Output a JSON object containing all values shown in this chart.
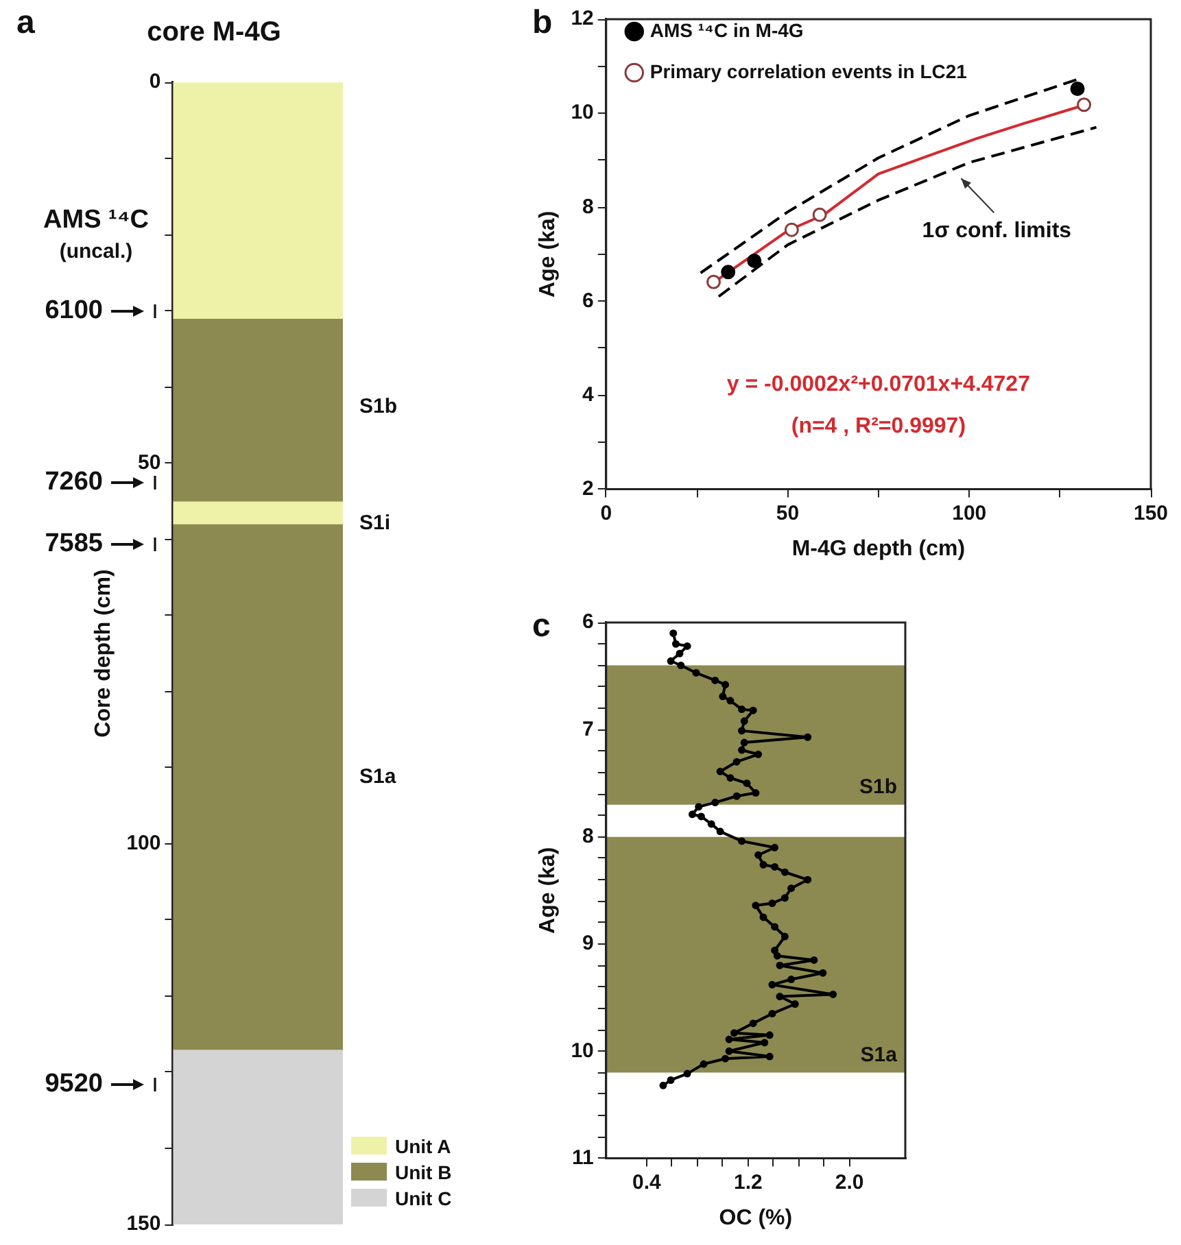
{
  "chart_data": [
    {
      "type": "bar",
      "title": "core M-4G",
      "ylabel": "Core depth (cm)",
      "stacked": true,
      "categories": [
        null
      ],
      "legend": "bottom right",
      "series": [
        {
          "name": "Unit A",
          "color": "#eef2a8",
          "values": [
            31
          ]
        },
        {
          "name": "Unit B",
          "color": "#8c8a50",
          "values": [
            24
          ]
        },
        {
          "color": "#eef2a8",
          "values": [
            3
          ]
        },
        {
          "color": "#8c8a50",
          "values": [
            69
          ]
        },
        {
          "name": "Unit C",
          "color": "#d4d4d4",
          "values": [
            23
          ]
        }
      ],
      "ylim": [
        150,
        0
      ],
      "yticks": [
        0,
        {
          "value": 10,
          "label": null
        },
        {
          "value": 20,
          "label": null
        },
        {
          "value": 30,
          "label": null
        },
        {
          "value": 40,
          "label": null
        },
        50,
        {
          "value": 60,
          "label": null
        },
        {
          "value": 70,
          "label": null
        },
        {
          "value": 80,
          "label": null
        },
        {
          "value": 90,
          "label": null
        },
        100,
        {
          "value": 110,
          "label": null
        },
        {
          "value": 120,
          "label": null
        },
        {
          "value": 130,
          "label": null
        },
        {
          "value": 140,
          "label": null
        },
        150
      ],
      "annotations": [
        "a",
        "AMS ¹⁴C",
        "(uncal.)",
        "6100",
        "7260",
        "7585",
        "9520",
        "S1b",
        "S1i",
        "S1a"
      ]
    },
    {
      "type": "scatter",
      "xlabel": "M-4G depth (cm)",
      "ylabel": "Age (ka)",
      "legend": "top left",
      "series": [
        {
          "name": "AMS ¹⁴C in M-4G",
          "color": "#000000",
          "marker": "circle",
          "x": [
            33.6,
            40.8,
            129.8
          ],
          "values": [
            6.62,
            6.86,
            10.52
          ]
        },
        {
          "name": "Primary correlation events in LC21",
          "color": "#8b3a3a",
          "marker": "circle",
          "x": [
            29.6,
            51.1,
            58.8,
            131.6
          ],
          "values": [
            6.41,
            7.52,
            7.84,
            10.18
          ]
        },
        {
          "type": "line",
          "color": "#d42a2f",
          "marker": "none",
          "x": [
            30,
            50,
            60,
            75,
            90,
            102,
            115,
            132
          ],
          "values": [
            6.42,
            7.5,
            7.84,
            8.71,
            9.13,
            9.46,
            9.78,
            10.18
          ]
        },
        {
          "type": "line",
          "color": "#000000",
          "marker": "none",
          "line_style": "dashed",
          "x": [
            26,
            50,
            75,
            100,
            131
          ],
          "values": [
            6.6,
            7.9,
            9.05,
            9.95,
            10.75
          ]
        },
        {
          "type": "line",
          "color": "#000000",
          "marker": "none",
          "line_style": "dashed",
          "x": [
            31,
            50,
            75,
            100,
            135
          ],
          "values": [
            6.1,
            7.2,
            8.15,
            8.95,
            9.7
          ]
        }
      ],
      "xlim": [
        0,
        150
      ],
      "xticks": [
        0,
        {
          "value": 25,
          "label": null
        },
        50,
        {
          "value": 75,
          "label": null
        },
        100,
        {
          "value": 125,
          "label": null
        },
        150
      ],
      "ylim": [
        2,
        12
      ],
      "yticks": [
        2,
        {
          "value": 3,
          "label": null
        },
        4,
        {
          "value": 5,
          "label": null
        },
        6,
        {
          "value": 7,
          "label": null
        },
        8,
        {
          "value": 9,
          "label": null
        },
        10,
        {
          "value": 11,
          "label": null
        },
        12
      ],
      "annotations": [
        "b",
        "y = -0.0002x²+0.0701x+4.4727",
        "(n=4 , R²=0.9997)",
        {
          "text": "1σ conf. limits",
          "x": 97,
          "y": 8.7
        }
      ]
    },
    {
      "type": "line",
      "xlabel": "OC (%)",
      "ylabel": "Age (ka)",
      "marker": "circle",
      "series": [
        {
          "color": "#000000",
          "x": [
            0.61,
            0.63,
            0.72,
            0.66,
            0.59,
            0.67,
            0.79,
            0.94,
            1.02,
            1.0,
            1.06,
            1.15,
            1.24,
            1.17,
            1.15,
            1.67,
            1.17,
            1.15,
            1.28,
            1.11,
            0.98,
            1.06,
            1.19,
            1.26,
            1.11,
            0.94,
            0.81,
            0.76,
            0.83,
            0.91,
            0.98,
            1.15,
            1.41,
            1.28,
            1.32,
            1.41,
            1.49,
            1.67,
            1.54,
            1.49,
            1.39,
            1.26,
            1.32,
            1.41,
            1.49,
            1.41,
            1.43,
            1.72,
            1.45,
            1.79,
            1.54,
            1.39,
            1.87,
            1.45,
            1.57,
            1.39,
            1.24,
            1.09,
            1.37,
            1.05,
            1.33,
            1.05,
            1.37,
            1.02,
            0.85,
            0.72,
            0.59,
            0.53
          ],
          "values": [
            6.1,
            6.2,
            6.22,
            6.29,
            6.36,
            6.4,
            6.47,
            6.54,
            6.58,
            6.69,
            6.73,
            6.81,
            6.82,
            6.92,
            7.01,
            7.07,
            7.12,
            7.19,
            7.23,
            7.3,
            7.39,
            7.45,
            7.5,
            7.59,
            7.62,
            7.68,
            7.72,
            7.79,
            7.81,
            7.88,
            7.95,
            8.04,
            8.1,
            8.17,
            8.26,
            8.28,
            8.33,
            8.4,
            8.48,
            8.57,
            8.62,
            8.64,
            8.75,
            8.84,
            8.93,
            9.06,
            9.11,
            9.15,
            9.2,
            9.27,
            9.33,
            9.38,
            9.47,
            9.49,
            9.56,
            9.65,
            9.74,
            9.83,
            9.85,
            9.89,
            9.92,
            10.0,
            10.05,
            10.07,
            10.12,
            10.21,
            10.27,
            10.32
          ]
        }
      ],
      "xlim": [
        0.08,
        2.44
      ],
      "xticks": [
        0.4,
        {
          "value": 0.6,
          "label": null
        },
        {
          "value": 0.8,
          "label": null
        },
        {
          "value": 1.0,
          "label": null
        },
        1.2,
        {
          "value": 1.4,
          "label": null
        },
        {
          "value": 1.6,
          "label": null
        },
        {
          "value": 1.8,
          "label": null
        },
        {
          "value": 2.0,
          "label": "2.0"
        }
      ],
      "ylim": [
        11,
        6
      ],
      "yticks": [
        6,
        {
          "value": 6.2,
          "label": null
        },
        {
          "value": 6.4,
          "label": null
        },
        {
          "value": 6.6,
          "label": null
        },
        {
          "value": 6.8,
          "label": null
        },
        7,
        {
          "value": 7.2,
          "label": null
        },
        {
          "value": 7.4,
          "label": null
        },
        {
          "value": 7.6,
          "label": null
        },
        {
          "value": 7.8,
          "label": null
        },
        8,
        {
          "value": 8.2,
          "label": null
        },
        {
          "value": 8.4,
          "label": null
        },
        {
          "value": 8.6,
          "label": null
        },
        {
          "value": 8.8,
          "label": null
        },
        9,
        {
          "value": 9.2,
          "label": null
        },
        {
          "value": 9.4,
          "label": null
        },
        {
          "value": 9.6,
          "label": null
        },
        {
          "value": 9.8,
          "label": null
        },
        10,
        {
          "value": 10.2,
          "label": null
        },
        {
          "value": 10.4,
          "label": null
        },
        {
          "value": 10.6,
          "label": null
        },
        {
          "value": 10.8,
          "label": null
        },
        11
      ],
      "bands": [
        {
          "axis": "y",
          "from": 6.4,
          "to": 7.7,
          "label": "S1b",
          "color": "#8c8a50"
        },
        {
          "axis": "y",
          "from": 8.0,
          "to": 10.2,
          "label": "S1a",
          "color": "#8c8a50"
        }
      ],
      "annotations": [
        "c"
      ]
    }
  ]
}
